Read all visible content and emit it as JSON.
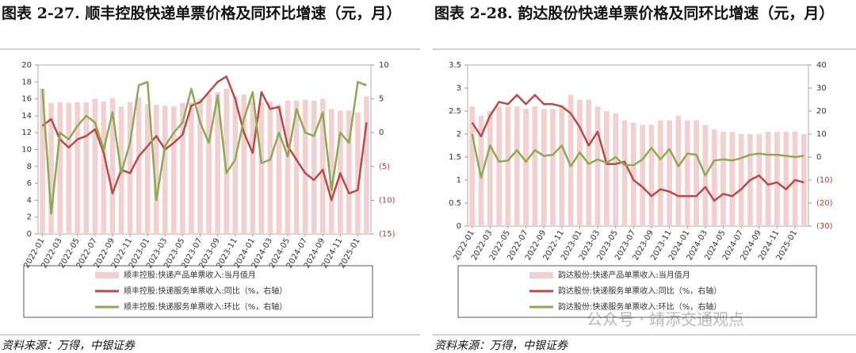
{
  "chart_data": [
    {
      "type": "bar",
      "title": "图表 2-27. 顺丰控股快递单票价格及同环比增速（元，月）",
      "source": "资料来源：万得，中银证券",
      "categories": [
        "2022-01",
        null,
        "2022-03",
        null,
        "2022-05",
        null,
        "2022-07",
        null,
        "2022-09",
        null,
        "2022-11",
        null,
        "2023-01",
        null,
        "2023-03",
        null,
        "2023-05",
        null,
        "2023-07",
        null,
        "2023-09",
        null,
        "2023-11",
        null,
        "2024-01",
        null,
        "2024-03",
        null,
        "2024-05",
        null,
        "2024-07",
        null,
        "2024-09",
        null,
        "2024-11",
        null,
        "2025-01",
        null
      ],
      "ylim": [
        0,
        20
      ],
      "yticks": [
        0,
        2,
        4,
        6,
        8,
        10,
        12,
        14,
        16,
        18,
        20
      ],
      "y2lim": [
        -15,
        10
      ],
      "y2ticks": [
        10,
        5,
        0,
        {
          "value": -5,
          "label": "(5)"
        },
        {
          "value": -10,
          "label": "(10)"
        },
        {
          "value": -15,
          "label": "(15)"
        }
      ],
      "series": [
        {
          "name": "顺丰控股:快递产品单票收入:当月值月",
          "type": "bar",
          "color": "#f3d0d0",
          "values": [
            17.2,
            15.5,
            15.6,
            15.5,
            15.6,
            15.6,
            16.0,
            15.7,
            16.1,
            15.1,
            15.6,
            16.2,
            15.4,
            15.3,
            15.2,
            15.1,
            15.5,
            15.6,
            16.0,
            16.6,
            16.8,
            17.2,
            16.3,
            16.5,
            15.8,
            15.6,
            15.7,
            15.3,
            15.8,
            15.8,
            15.9,
            15.8,
            16.0,
            14.8,
            14.6,
            14.6,
            14.4,
            16.3
          ]
        },
        {
          "name": "顺丰控股:快递服务单票收入:同比（%，右轴）",
          "type": "line",
          "axis": "y2",
          "color": "#b84a47",
          "values": [
            1.0,
            2.0,
            -1.0,
            -2.2,
            -1.0,
            -0.5,
            0.5,
            -3.0,
            -9.0,
            -5.5,
            -6.0,
            -3.5,
            -2.0,
            -0.5,
            -2.5,
            -1.5,
            -0.3,
            4.0,
            4.5,
            6.0,
            7.5,
            8.3,
            5.0,
            0.0,
            -3.0,
            6.0,
            3.5,
            3.8,
            -2.0,
            -4.0,
            -6.0,
            -7.0,
            -5.5,
            -10.0,
            -6.0,
            -9.0,
            -8.5,
            1.5
          ]
        },
        {
          "name": "顺丰控股:快递服务单票收入:环比（%，右轴）",
          "type": "line",
          "axis": "y2",
          "color": "#8caa56",
          "values": [
            6.5,
            -12,
            0,
            -1,
            1,
            2.5,
            1.5,
            -2.5,
            3,
            -6,
            -1.5,
            7,
            7.5,
            -10,
            -2,
            0,
            1.5,
            6.5,
            1.5,
            -1.5,
            5.5,
            -6,
            -4,
            2,
            6,
            -4.5,
            -4,
            0,
            -3.5,
            3.5,
            0,
            -0.5,
            3,
            -8.5,
            0,
            -1.5,
            7.5,
            7
          ]
        }
      ]
    },
    {
      "type": "bar",
      "title": "图表 2-28. 韵达股份快递单票价格及同环比增速（元，月）",
      "source": "资料来源：万得，中银证券",
      "categories": [
        "2022-01",
        null,
        "2022-03",
        null,
        "2022-05",
        null,
        "2022-07",
        null,
        "2022-09",
        null,
        "2022-11",
        null,
        "2023-01",
        null,
        "2023-03",
        null,
        "2023-05",
        null,
        "2023-07",
        null,
        "2023-09",
        null,
        "2023-11",
        null,
        "2024-01",
        null,
        "2024-03",
        null,
        "2024-05",
        null,
        "2024-07",
        null,
        "2024-09",
        null,
        "2024-11",
        null,
        "2025-01",
        null
      ],
      "ylim": [
        0,
        3.5
      ],
      "yticks": [
        0,
        0.5,
        1,
        1.5,
        2,
        2.5,
        3,
        3.5
      ],
      "y2lim": [
        -30,
        40
      ],
      "y2ticks": [
        40,
        30,
        20,
        10,
        0,
        {
          "value": -10,
          "label": "(10)"
        },
        {
          "value": -20,
          "label": "(20)"
        },
        {
          "value": -30,
          "label": "(30)"
        }
      ],
      "series": [
        {
          "name": "韵达股份:快递产品单票收入:当月值月",
          "type": "bar",
          "color": "#f3d0d0",
          "values": [
            2.6,
            2.4,
            2.5,
            2.6,
            2.6,
            2.6,
            2.55,
            2.6,
            2.55,
            2.55,
            2.6,
            2.85,
            2.75,
            2.75,
            2.6,
            2.5,
            2.45,
            2.3,
            2.25,
            2.2,
            2.2,
            2.3,
            2.3,
            2.4,
            2.3,
            2.3,
            2.2,
            2.1,
            2.05,
            2.05,
            2.0,
            2.0,
            2.0,
            2.05,
            2.05,
            2.05,
            2.05,
            2.0
          ]
        },
        {
          "name": "韵达股份:快递服务单票收入:同比（%，右轴）",
          "type": "line",
          "axis": "y2",
          "color": "#b84a47",
          "values": [
            15,
            9,
            18,
            24,
            23,
            27,
            23,
            27,
            23,
            23,
            22,
            19,
            13,
            5,
            11,
            -3,
            -3,
            -2,
            -10,
            -13,
            -17,
            -14,
            -15,
            -17,
            -17,
            -17,
            -13,
            -19,
            -16,
            -17,
            -14,
            -10,
            -8,
            -12,
            -11,
            -14,
            -10,
            -11
          ]
        },
        {
          "name": "韵达股份:快递服务单票收入:环比（%，右轴）",
          "type": "line",
          "axis": "y2",
          "color": "#8caa56",
          "values": [
            10,
            -9,
            5,
            -2,
            -1.5,
            3,
            -2,
            3,
            0.5,
            1,
            5,
            -4,
            2,
            -3,
            -1,
            -2.5,
            0,
            -3.5,
            -3.5,
            -1,
            4,
            -1,
            3.5,
            -4,
            1.5,
            1,
            -8,
            -1.5,
            -1,
            -1.5,
            -0.5,
            1,
            1.5,
            1,
            1,
            0.5,
            0,
            0.5
          ]
        }
      ]
    }
  ],
  "watermark": "公众号 · 靖添交通观点"
}
